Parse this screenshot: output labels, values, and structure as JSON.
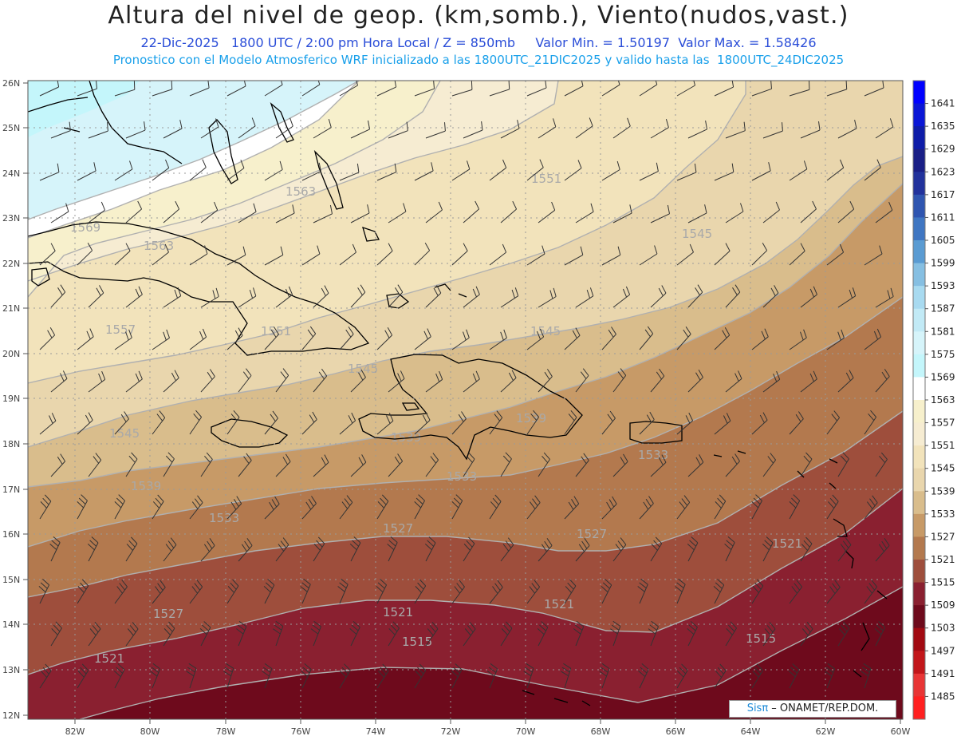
{
  "header": {
    "title": "Altura del nivel de geop. (km,somb.), Viento(nudos,vast.)",
    "subtitle": "22-Dic-2025   1800 UTC / 2:00 pm Hora Local / Z = 850mb     Valor Min. = 1.50197  Valor Max. = 1.58426",
    "info": "Pronostico con el Modelo Atmosferico WRF inicializado a las 1800UTC_21DIC2025 y valido hasta las  1800UTC_24DIC2025"
  },
  "map": {
    "domain": {
      "lon": [
        -83.3,
        -60
      ],
      "lat": [
        11.8,
        26.05
      ]
    },
    "lat_ticks": [
      "26N",
      "25N",
      "24N",
      "23N",
      "22N",
      "21N",
      "20N",
      "19N",
      "18N",
      "17N",
      "16N",
      "15N",
      "14N",
      "13N",
      "12N"
    ],
    "lon_ticks": [
      "82W",
      "80W",
      "78W",
      "76W",
      "74W",
      "72W",
      "70W",
      "68W",
      "66W",
      "64W",
      "62W",
      "60W"
    ],
    "contour_labels": [
      "1569",
      "1563",
      "1563",
      "1557",
      "1551",
      "1551",
      "1545",
      "1545",
      "1545",
      "1545",
      "1539",
      "1539",
      "1539",
      "1533",
      "1533",
      "1533",
      "1527",
      "1527",
      "1527",
      "1521",
      "1521",
      "1521",
      "1521",
      "1515",
      "1515"
    ],
    "credit_logo": "Sisπ",
    "credit_text": " – ONAMET/REP.DOM."
  },
  "colorbar": {
    "levels": [
      "1641",
      "1635",
      "1629",
      "1623",
      "1617",
      "1611",
      "1605",
      "1599",
      "1593",
      "1587",
      "1581",
      "1575",
      "1569",
      "1563",
      "1557",
      "1551",
      "1545",
      "1539",
      "1533",
      "1527",
      "1521",
      "1515",
      "1509",
      "1503",
      "1497",
      "1491",
      "1485"
    ],
    "colors": [
      "#0000ff",
      "#0a16d6",
      "#0e1ca8",
      "#1a1f86",
      "#22329c",
      "#2f55b0",
      "#3f76c2",
      "#5a9bd2",
      "#86bfe2",
      "#a8daf0",
      "#c2eaf6",
      "#d6f4fa",
      "#c4f6fb",
      "#ffffff",
      "#f7f0cc",
      "#f6ecd2",
      "#f2e3bb",
      "#e9d6ad",
      "#d9bd8c",
      "#c79a67",
      "#b3794e",
      "#9e4e3c",
      "#8a2030",
      "#6e0a1c",
      "#a20a12",
      "#c2161a",
      "#e83535",
      "#ff2020"
    ]
  }
}
